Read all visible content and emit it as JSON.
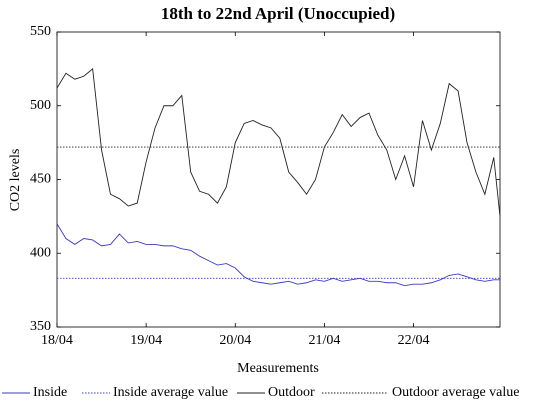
{
  "chart_data": {
    "type": "line",
    "title": "18th to 22nd April (Unoccupied)",
    "x_label": "Measurements",
    "y_label": "CO2 levels",
    "x": [
      0,
      0.1,
      0.2,
      0.3,
      0.4,
      0.5,
      0.6,
      0.7,
      0.8,
      0.9,
      1.0,
      1.1,
      1.2,
      1.3,
      1.4,
      1.5,
      1.6,
      1.7,
      1.8,
      1.9,
      2.0,
      2.1,
      2.2,
      2.3,
      2.4,
      2.5,
      2.6,
      2.7,
      2.8,
      2.9,
      3.0,
      3.1,
      3.2,
      3.3,
      3.4,
      3.5,
      3.6,
      3.7,
      3.8,
      3.9,
      4.0,
      4.1,
      4.2,
      4.3,
      4.4,
      4.5,
      4.6,
      4.7,
      4.8,
      4.9,
      4.97
    ],
    "series": [
      {
        "name": "Inside",
        "color": "#3b3bc4",
        "values": [
          420,
          410,
          406,
          410,
          409,
          405,
          406,
          413,
          407,
          408,
          406,
          406,
          405,
          405,
          403,
          402,
          398,
          395,
          392,
          393,
          390,
          384,
          381,
          380,
          379,
          380,
          381,
          379,
          380,
          382,
          381,
          383,
          381,
          382,
          383,
          381,
          381,
          380,
          380,
          378,
          379,
          379,
          380,
          382,
          385,
          386,
          384,
          382,
          381,
          382,
          382
        ]
      },
      {
        "name": "Outdoor",
        "color": "#222222",
        "values": [
          512,
          522,
          518,
          520,
          525,
          470,
          440,
          437,
          432,
          434,
          462,
          485,
          500,
          500,
          507,
          455,
          442,
          440,
          434,
          445,
          475,
          488,
          490,
          487,
          485,
          478,
          455,
          448,
          440,
          450,
          472,
          482,
          494,
          486,
          492,
          495,
          480,
          470,
          450,
          466,
          445,
          490,
          470,
          488,
          515,
          510,
          475,
          455,
          440,
          465,
          425
        ]
      }
    ],
    "reference_lines": [
      {
        "name": "Inside average value",
        "value": 383,
        "color": "#3b3bc4"
      },
      {
        "name": "Outdoor average value",
        "value": 472,
        "color": "#222222"
      }
    ],
    "xlim": [
      0,
      4.97
    ],
    "xticks": [
      {
        "value": 0,
        "label": "18/04"
      },
      {
        "value": 1,
        "label": "19/04"
      },
      {
        "value": 2,
        "label": "20/04"
      },
      {
        "value": 3,
        "label": "21/04"
      },
      {
        "value": 4,
        "label": "22/04"
      }
    ],
    "ylim": [
      350,
      550
    ],
    "yticks": [
      350,
      400,
      450,
      500,
      550
    ]
  }
}
